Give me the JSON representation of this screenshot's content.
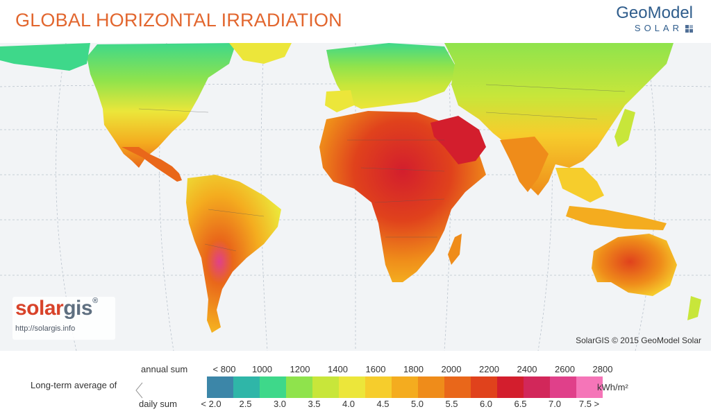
{
  "title": "GLOBAL HORIZONTAL IRRADIATION",
  "brand": {
    "name": "GeoModel",
    "sub": "SOLAR"
  },
  "logo": {
    "part1": "solar",
    "part2": "gis",
    "reg": "®",
    "url": "http://solargis.info"
  },
  "copyright": "SolarGIS © 2015 GeoModel Solar",
  "legend": {
    "lead": "Long-term average of",
    "annual_label": "annual sum",
    "daily_label": "daily sum",
    "unit": "kWh/m²",
    "annual_ticks": [
      "< 800",
      "1000",
      "1200",
      "1400",
      "1600",
      "1800",
      "2000",
      "2200",
      "2400",
      "2600",
      "2800"
    ],
    "daily_ticks": [
      "< 2.0",
      "2.5",
      "3.0",
      "3.5",
      "4.0",
      "4.5",
      "5.0",
      "5.5",
      "6.0",
      "6.5",
      "7.0",
      "7.5 >"
    ],
    "colors": [
      "#3c86a8",
      "#2fb6a8",
      "#3ed88a",
      "#8fe34c",
      "#c8e63a",
      "#ece63a",
      "#f6cd2c",
      "#f4ac1f",
      "#ef8c1a",
      "#e9671a",
      "#e0421c",
      "#d31e2d",
      "#d2275a",
      "#e0408a",
      "#f575b8"
    ]
  },
  "map": {
    "labels_only": true,
    "irradiation_regions": [
      {
        "region": "Sahara / Arabia",
        "level": "high"
      },
      {
        "region": "Australia",
        "level": "high"
      },
      {
        "region": "Andes",
        "level": "very-high"
      },
      {
        "region": "Northern Europe",
        "level": "low"
      }
    ]
  }
}
